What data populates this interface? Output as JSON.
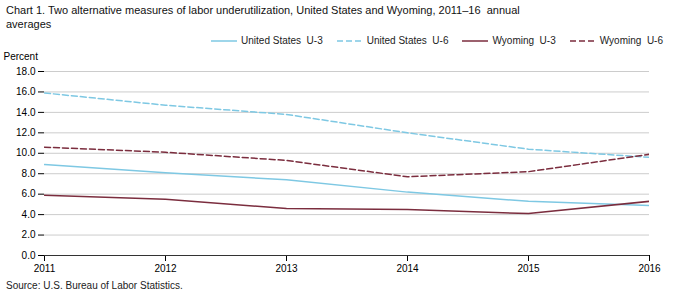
{
  "chart_data": {
    "type": "line",
    "title": "Chart 1. Two alternative measures of labor underutilization, United States and Wyoming, 2011–16  annual\naverages",
    "ylabel": "Percent",
    "source": "Source: U.S. Bureau of Labor Statistics.",
    "x": [
      2011,
      2012,
      2013,
      2014,
      2015,
      2016
    ],
    "series": [
      {
        "name": "United States  U-3",
        "color": "#7ec8e3",
        "line_style": "solid",
        "values": [
          8.9,
          8.1,
          7.4,
          6.2,
          5.3,
          4.9
        ]
      },
      {
        "name": "United States  U-6",
        "color": "#7ec8e3",
        "line_style": "dashed",
        "values": [
          15.9,
          14.7,
          13.8,
          12.0,
          10.4,
          9.6
        ]
      },
      {
        "name": "Wyoming  U-3",
        "color": "#7b2d3e",
        "line_style": "solid",
        "values": [
          5.9,
          5.5,
          4.6,
          4.5,
          4.1,
          5.3
        ]
      },
      {
        "name": "Wyoming  U-6",
        "color": "#7b2d3e",
        "line_style": "dashed",
        "values": [
          10.6,
          10.1,
          9.3,
          7.7,
          8.2,
          9.9
        ]
      }
    ],
    "xlim": [
      2011,
      2016
    ],
    "xticks": [
      2011,
      2012,
      2013,
      2014,
      2015,
      2016
    ],
    "ylim": [
      0,
      18
    ],
    "yticks": [
      {
        "value": 0,
        "label": "0.0"
      },
      {
        "value": 2,
        "label": "2.0"
      },
      {
        "value": 4,
        "label": "4.0"
      },
      {
        "value": 6,
        "label": "6.0"
      },
      {
        "value": 8,
        "label": "8.0"
      },
      {
        "value": 10,
        "label": "10.0"
      },
      {
        "value": 12,
        "label": "12.0"
      },
      {
        "value": 14,
        "label": "14.0"
      },
      {
        "value": 16,
        "label": "16.0"
      },
      {
        "value": 18,
        "label": "18.0"
      }
    ],
    "grid": "y",
    "legend": "top"
  }
}
